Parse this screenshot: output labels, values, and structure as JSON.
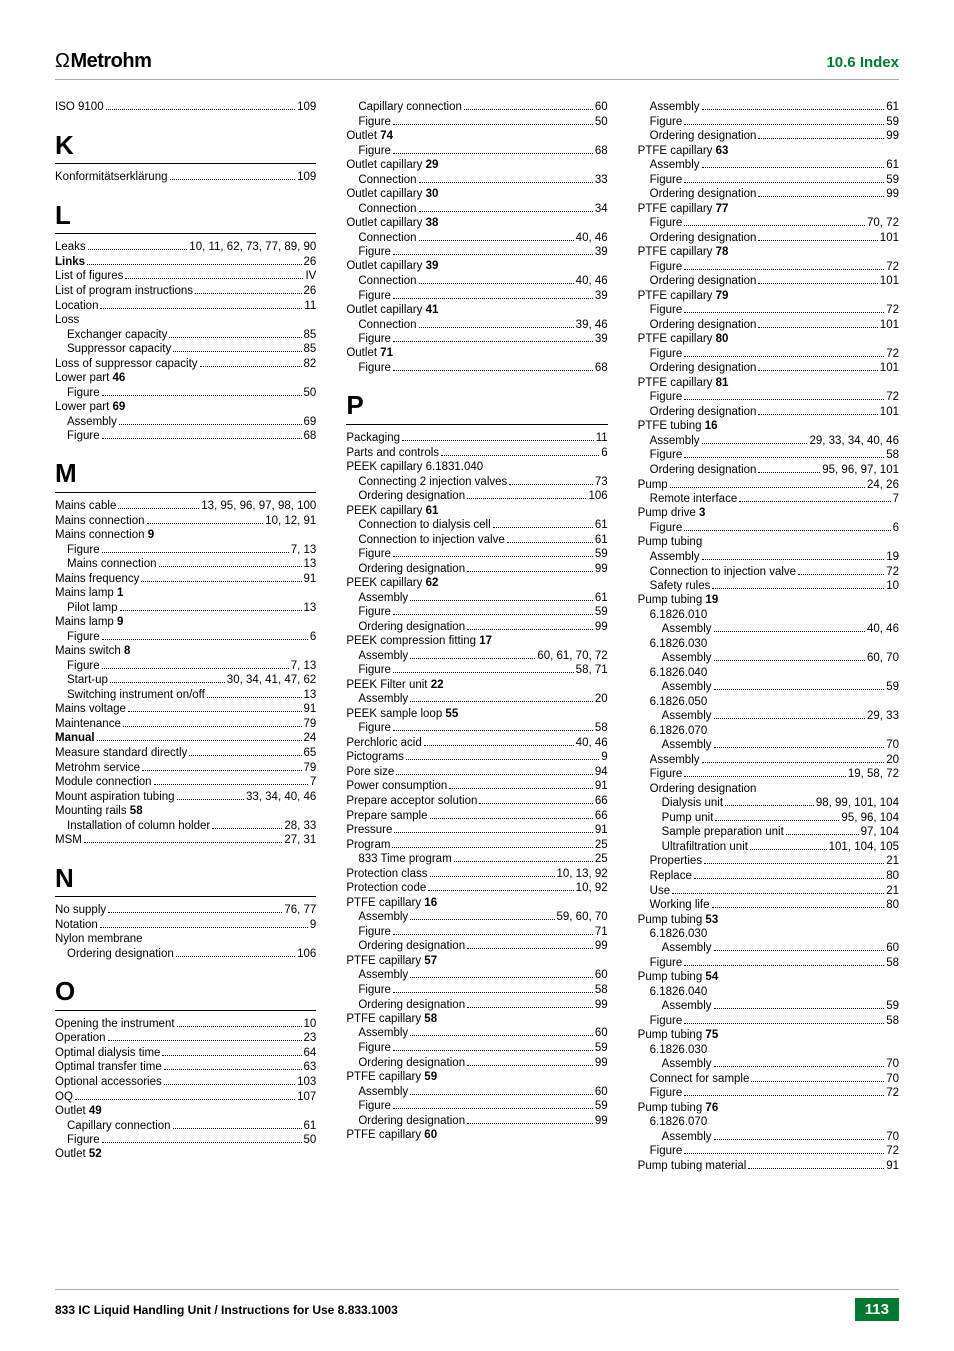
{
  "header": {
    "logo": "Metrohm",
    "section": "10.6  Index"
  },
  "footer": {
    "left": "833 IC Liquid Handling Unit / Instructions for Use 8.833.1003",
    "page": "113"
  },
  "col1": [
    {
      "t": "entry",
      "label": "ISO 9100",
      "pg": "109"
    },
    {
      "t": "letter",
      "v": "K"
    },
    {
      "t": "entry",
      "label": "Konformitätserklärung",
      "pg": "109"
    },
    {
      "t": "letter",
      "v": "L"
    },
    {
      "t": "entry",
      "label": "Leaks",
      "pg": "10, 11, 62, 73, 77, 89, 90"
    },
    {
      "t": "entry",
      "label": "Links",
      "bold": true,
      "pg": "26"
    },
    {
      "t": "entry",
      "label": "List of figures",
      "pg": "IV"
    },
    {
      "t": "entry",
      "label": "List of program instructions",
      "pg": "26"
    },
    {
      "t": "entry",
      "label": "Location",
      "pg": "11"
    },
    {
      "t": "entry",
      "label": "Loss",
      "noline": true
    },
    {
      "t": "entry",
      "indent": 1,
      "label": "Exchanger capacity",
      "pg": "85"
    },
    {
      "t": "entry",
      "indent": 1,
      "label": "Suppressor capacity",
      "pg": "85"
    },
    {
      "t": "entry",
      "label": "Loss of suppressor capacity",
      "pg": "82"
    },
    {
      "t": "entry",
      "label_html": "Lower part <b>46</b>",
      "noline": true
    },
    {
      "t": "entry",
      "indent": 1,
      "label": "Figure",
      "pg": "50"
    },
    {
      "t": "entry",
      "label_html": "Lower part <b>69</b>",
      "noline": true
    },
    {
      "t": "entry",
      "indent": 1,
      "label": "Assembly",
      "pg": "69"
    },
    {
      "t": "entry",
      "indent": 1,
      "label": "Figure",
      "pg": "68"
    },
    {
      "t": "letter",
      "v": "M"
    },
    {
      "t": "entry",
      "label": "Mains cable",
      "pg": "13, 95, 96, 97, 98, 100"
    },
    {
      "t": "entry",
      "label": "Mains connection",
      "pg": "10, 12, 91"
    },
    {
      "t": "entry",
      "label_html": "Mains connection <b>9</b>",
      "noline": true
    },
    {
      "t": "entry",
      "indent": 1,
      "label": "Figure",
      "pg": "7, 13"
    },
    {
      "t": "entry",
      "indent": 1,
      "label": "Mains connection",
      "pg": "13"
    },
    {
      "t": "entry",
      "label": "Mains frequency",
      "pg": "91"
    },
    {
      "t": "entry",
      "label_html": "Mains lamp <b>1</b>",
      "noline": true
    },
    {
      "t": "entry",
      "indent": 1,
      "label": "Pilot lamp",
      "pg": "13"
    },
    {
      "t": "entry",
      "label_html": "Mains lamp <b>9</b>",
      "noline": true
    },
    {
      "t": "entry",
      "indent": 1,
      "label": "Figure",
      "pg": "6"
    },
    {
      "t": "entry",
      "label_html": "Mains switch <b>8</b>",
      "noline": true
    },
    {
      "t": "entry",
      "indent": 1,
      "label": "Figure",
      "pg": "7, 13"
    },
    {
      "t": "entry",
      "indent": 1,
      "label": "Start-up",
      "pg": "30, 34, 41, 47, 62"
    },
    {
      "t": "entry",
      "indent": 1,
      "label": "Switching instrument on/off",
      "pg": "13"
    },
    {
      "t": "entry",
      "label": "Mains voltage",
      "pg": "91"
    },
    {
      "t": "entry",
      "label": "Maintenance",
      "pg": "79"
    },
    {
      "t": "entry",
      "label": "Manual",
      "bold": true,
      "pg": "24"
    },
    {
      "t": "entry",
      "label": "Measure standard directly",
      "pg": "65"
    },
    {
      "t": "entry",
      "label": "Metrohm service",
      "pg": "79"
    },
    {
      "t": "entry",
      "label": "Module connection",
      "pg": "7"
    },
    {
      "t": "entry",
      "label": "Mount aspiration tubing",
      "pg": "33, 34, 40, 46"
    },
    {
      "t": "entry",
      "label_html": "Mounting rails <b>58</b>",
      "noline": true
    },
    {
      "t": "entry",
      "indent": 1,
      "label": "Installation of column holder",
      "pg": "28, 33"
    },
    {
      "t": "entry",
      "label": "MSM",
      "pg": "27, 31"
    },
    {
      "t": "letter",
      "v": "N"
    },
    {
      "t": "entry",
      "label": "No supply",
      "pg": "76, 77"
    },
    {
      "t": "entry",
      "label": "Notation",
      "pg": "9"
    },
    {
      "t": "entry",
      "label": "Nylon membrane",
      "noline": true
    },
    {
      "t": "entry",
      "indent": 1,
      "label": "Ordering designation",
      "pg": "106"
    },
    {
      "t": "letter",
      "v": "O"
    },
    {
      "t": "entry",
      "label": "Opening the instrument",
      "pg": "10"
    },
    {
      "t": "entry",
      "label": "Operation",
      "pg": "23"
    },
    {
      "t": "entry",
      "label": "Optimal dialysis time",
      "pg": "64"
    },
    {
      "t": "entry",
      "label": "Optimal transfer time",
      "pg": "63"
    },
    {
      "t": "entry",
      "label": "Optional accessories",
      "pg": "103"
    },
    {
      "t": "entry",
      "label": "OQ",
      "pg": "107"
    },
    {
      "t": "entry",
      "label_html": "Outlet <b>49</b>",
      "noline": true
    },
    {
      "t": "entry",
      "indent": 1,
      "label": "Capillary connection",
      "pg": "61"
    },
    {
      "t": "entry",
      "indent": 1,
      "label": "Figure",
      "pg": "50"
    },
    {
      "t": "entry",
      "label_html": "Outlet <b>52</b>",
      "noline": true
    }
  ],
  "col2": [
    {
      "t": "entry",
      "indent": 1,
      "label": "Capillary connection",
      "pg": "60"
    },
    {
      "t": "entry",
      "indent": 1,
      "label": "Figure",
      "pg": "50"
    },
    {
      "t": "entry",
      "label_html": "Outlet <b>74</b>",
      "noline": true
    },
    {
      "t": "entry",
      "indent": 1,
      "label": "Figure",
      "pg": "68"
    },
    {
      "t": "entry",
      "label_html": "Outlet capillary <b>29</b>",
      "noline": true
    },
    {
      "t": "entry",
      "indent": 1,
      "label": "Connection",
      "pg": "33"
    },
    {
      "t": "entry",
      "label_html": "Outlet capillary <b>30</b>",
      "noline": true
    },
    {
      "t": "entry",
      "indent": 1,
      "label": "Connection",
      "pg": "34"
    },
    {
      "t": "entry",
      "label_html": "Outlet capillary <b>38</b>",
      "noline": true
    },
    {
      "t": "entry",
      "indent": 1,
      "label": "Connection",
      "pg": "40, 46"
    },
    {
      "t": "entry",
      "indent": 1,
      "label": "Figure",
      "pg": "39"
    },
    {
      "t": "entry",
      "label_html": "Outlet capillary <b>39</b>",
      "noline": true
    },
    {
      "t": "entry",
      "indent": 1,
      "label": "Connection",
      "pg": "40, 46"
    },
    {
      "t": "entry",
      "indent": 1,
      "label": "Figure",
      "pg": "39"
    },
    {
      "t": "entry",
      "label_html": "Outlet capillary <b>41</b>",
      "noline": true
    },
    {
      "t": "entry",
      "indent": 1,
      "label": "Connection",
      "pg": "39, 46"
    },
    {
      "t": "entry",
      "indent": 1,
      "label": "Figure",
      "pg": "39"
    },
    {
      "t": "entry",
      "label_html": "Outlet <b>71</b>",
      "noline": true
    },
    {
      "t": "entry",
      "indent": 1,
      "label": "Figure",
      "pg": "68"
    },
    {
      "t": "letter",
      "v": "P"
    },
    {
      "t": "entry",
      "label": "Packaging",
      "pg": "11"
    },
    {
      "t": "entry",
      "label": "Parts and controls",
      "pg": "6"
    },
    {
      "t": "entry",
      "label": "PEEK capillary 6.1831.040",
      "noline": true
    },
    {
      "t": "entry",
      "indent": 1,
      "label": "Connecting 2 injection valves",
      "pg": "73"
    },
    {
      "t": "entry",
      "indent": 1,
      "label": "Ordering designation",
      "pg": "106"
    },
    {
      "t": "entry",
      "label_html": "PEEK capillary <b>61</b>",
      "noline": true
    },
    {
      "t": "entry",
      "indent": 1,
      "label": "Connection to dialysis cell",
      "pg": "61"
    },
    {
      "t": "entry",
      "indent": 1,
      "label": "Connection to injection valve",
      "pg": "61"
    },
    {
      "t": "entry",
      "indent": 1,
      "label": "Figure",
      "pg": "59"
    },
    {
      "t": "entry",
      "indent": 1,
      "label": "Ordering designation",
      "pg": "99"
    },
    {
      "t": "entry",
      "label_html": "PEEK capillary <b>62</b>",
      "noline": true
    },
    {
      "t": "entry",
      "indent": 1,
      "label": "Assembly",
      "pg": "61"
    },
    {
      "t": "entry",
      "indent": 1,
      "label": "Figure",
      "pg": "59"
    },
    {
      "t": "entry",
      "indent": 1,
      "label": "Ordering designation",
      "pg": "99"
    },
    {
      "t": "entry",
      "label_html": "PEEK compression fitting <b>17</b>",
      "noline": true
    },
    {
      "t": "entry",
      "indent": 1,
      "label": "Assembly",
      "pg": "60, 61, 70, 72"
    },
    {
      "t": "entry",
      "indent": 1,
      "label": "Figure",
      "pg": "58, 71"
    },
    {
      "t": "entry",
      "label_html": "PEEK Filter unit <b>22</b>",
      "noline": true
    },
    {
      "t": "entry",
      "indent": 1,
      "label": "Assembly",
      "pg": "20"
    },
    {
      "t": "entry",
      "label_html": "PEEK sample loop <b>55</b>",
      "noline": true
    },
    {
      "t": "entry",
      "indent": 1,
      "label": "Figure",
      "pg": "58"
    },
    {
      "t": "entry",
      "label": "Perchloric acid",
      "pg": "40, 46"
    },
    {
      "t": "entry",
      "label": "Pictograms",
      "pg": "9"
    },
    {
      "t": "entry",
      "label": "Pore size",
      "pg": "94"
    },
    {
      "t": "entry",
      "label": "Power consumption",
      "pg": "91"
    },
    {
      "t": "entry",
      "label": "Prepare acceptor solution",
      "pg": "66"
    },
    {
      "t": "entry",
      "label": "Prepare sample",
      "pg": "66"
    },
    {
      "t": "entry",
      "label": "Pressure",
      "pg": "91"
    },
    {
      "t": "entry",
      "label": "Program",
      "pg": "25"
    },
    {
      "t": "entry",
      "indent": 1,
      "label": "833 Time program",
      "pg": "25"
    },
    {
      "t": "entry",
      "label": "Protection class",
      "pg": "10, 13, 92"
    },
    {
      "t": "entry",
      "label": "Protection code",
      "pg": "10, 92"
    },
    {
      "t": "entry",
      "label_html": "PTFE capillary <b>16</b>",
      "noline": true
    },
    {
      "t": "entry",
      "indent": 1,
      "label": "Assembly",
      "pg": "59, 60, 70"
    },
    {
      "t": "entry",
      "indent": 1,
      "label": "Figure",
      "pg": "71"
    },
    {
      "t": "entry",
      "indent": 1,
      "label": "Ordering designation",
      "pg": "99"
    },
    {
      "t": "entry",
      "label_html": "PTFE capillary <b>57</b>",
      "noline": true
    },
    {
      "t": "entry",
      "indent": 1,
      "label": "Assembly",
      "pg": "60"
    },
    {
      "t": "entry",
      "indent": 1,
      "label": "Figure",
      "pg": "58"
    },
    {
      "t": "entry",
      "indent": 1,
      "label": "Ordering designation",
      "pg": "99"
    },
    {
      "t": "entry",
      "label_html": "PTFE capillary <b>58</b>",
      "noline": true
    },
    {
      "t": "entry",
      "indent": 1,
      "label": "Assembly",
      "pg": "60"
    },
    {
      "t": "entry",
      "indent": 1,
      "label": "Figure",
      "pg": "59"
    },
    {
      "t": "entry",
      "indent": 1,
      "label": "Ordering designation",
      "pg": "99"
    },
    {
      "t": "entry",
      "label_html": "PTFE capillary <b>59</b>",
      "noline": true
    },
    {
      "t": "entry",
      "indent": 1,
      "label": "Assembly",
      "pg": "60"
    },
    {
      "t": "entry",
      "indent": 1,
      "label": "Figure",
      "pg": "59"
    },
    {
      "t": "entry",
      "indent": 1,
      "label": "Ordering designation",
      "pg": "99"
    },
    {
      "t": "entry",
      "label_html": "PTFE capillary <b>60</b>",
      "noline": true
    }
  ],
  "col3": [
    {
      "t": "entry",
      "indent": 1,
      "label": "Assembly",
      "pg": "61"
    },
    {
      "t": "entry",
      "indent": 1,
      "label": "Figure",
      "pg": "59"
    },
    {
      "t": "entry",
      "indent": 1,
      "label": "Ordering designation",
      "pg": "99"
    },
    {
      "t": "entry",
      "label_html": "PTFE capillary <b>63</b>",
      "noline": true
    },
    {
      "t": "entry",
      "indent": 1,
      "label": "Assembly",
      "pg": "61"
    },
    {
      "t": "entry",
      "indent": 1,
      "label": "Figure",
      "pg": "59"
    },
    {
      "t": "entry",
      "indent": 1,
      "label": "Ordering designation",
      "pg": "99"
    },
    {
      "t": "entry",
      "label_html": "PTFE capillary <b>77</b>",
      "noline": true
    },
    {
      "t": "entry",
      "indent": 1,
      "label": "Figure",
      "pg": "70, 72"
    },
    {
      "t": "entry",
      "indent": 1,
      "label": "Ordering designation",
      "pg": "101"
    },
    {
      "t": "entry",
      "label_html": "PTFE capillary <b>78</b>",
      "noline": true
    },
    {
      "t": "entry",
      "indent": 1,
      "label": "Figure",
      "pg": "72"
    },
    {
      "t": "entry",
      "indent": 1,
      "label": "Ordering designation",
      "pg": "101"
    },
    {
      "t": "entry",
      "label_html": "PTFE capillary <b>79</b>",
      "noline": true
    },
    {
      "t": "entry",
      "indent": 1,
      "label": "Figure",
      "pg": "72"
    },
    {
      "t": "entry",
      "indent": 1,
      "label": "Ordering designation",
      "pg": "101"
    },
    {
      "t": "entry",
      "label_html": "PTFE capillary <b>80</b>",
      "noline": true
    },
    {
      "t": "entry",
      "indent": 1,
      "label": "Figure",
      "pg": "72"
    },
    {
      "t": "entry",
      "indent": 1,
      "label": "Ordering designation",
      "pg": "101"
    },
    {
      "t": "entry",
      "label_html": "PTFE capillary <b>81</b>",
      "noline": true
    },
    {
      "t": "entry",
      "indent": 1,
      "label": "Figure",
      "pg": "72"
    },
    {
      "t": "entry",
      "indent": 1,
      "label": "Ordering designation",
      "pg": "101"
    },
    {
      "t": "entry",
      "label_html": "PTFE tubing <b>16</b>",
      "noline": true
    },
    {
      "t": "entry",
      "indent": 1,
      "label": "Assembly",
      "pg": "29, 33, 34, 40, 46"
    },
    {
      "t": "entry",
      "indent": 1,
      "label": "Figure",
      "pg": "58"
    },
    {
      "t": "entry",
      "indent": 1,
      "label": "Ordering designation",
      "pg": "95, 96, 97, 101"
    },
    {
      "t": "entry",
      "label": "Pump",
      "pg": "24, 26"
    },
    {
      "t": "entry",
      "indent": 1,
      "label": "Remote interface",
      "pg": "7"
    },
    {
      "t": "entry",
      "label_html": "Pump drive <b>3</b>",
      "noline": true
    },
    {
      "t": "entry",
      "indent": 1,
      "label": "Figure",
      "pg": "6"
    },
    {
      "t": "entry",
      "label": "Pump tubing",
      "noline": true
    },
    {
      "t": "entry",
      "indent": 1,
      "label": "Assembly",
      "pg": "19"
    },
    {
      "t": "entry",
      "indent": 1,
      "label": "Connection to injection valve",
      "pg": "72"
    },
    {
      "t": "entry",
      "indent": 1,
      "label": "Safety rules",
      "pg": "10"
    },
    {
      "t": "entry",
      "label_html": "Pump tubing <b>19</b>",
      "noline": true
    },
    {
      "t": "entry",
      "indent": 1,
      "label": "6.1826.010",
      "noline": true
    },
    {
      "t": "entry",
      "indent": 2,
      "label": "Assembly",
      "pg": "40, 46"
    },
    {
      "t": "entry",
      "indent": 1,
      "label": "6.1826.030",
      "noline": true
    },
    {
      "t": "entry",
      "indent": 2,
      "label": "Assembly",
      "pg": "60, 70"
    },
    {
      "t": "entry",
      "indent": 1,
      "label": "6.1826.040",
      "noline": true
    },
    {
      "t": "entry",
      "indent": 2,
      "label": "Assembly",
      "pg": "59"
    },
    {
      "t": "entry",
      "indent": 1,
      "label": "6.1826.050",
      "noline": true
    },
    {
      "t": "entry",
      "indent": 2,
      "label": "Assembly",
      "pg": "29, 33"
    },
    {
      "t": "entry",
      "indent": 1,
      "label": "6.1826.070",
      "noline": true
    },
    {
      "t": "entry",
      "indent": 2,
      "label": "Assembly",
      "pg": "70"
    },
    {
      "t": "entry",
      "indent": 1,
      "label": "Assembly",
      "pg": "20"
    },
    {
      "t": "entry",
      "indent": 1,
      "label": "Figure",
      "pg": "19, 58, 72"
    },
    {
      "t": "entry",
      "indent": 1,
      "label": "Ordering designation",
      "noline": true
    },
    {
      "t": "entry",
      "indent": 2,
      "label": "Dialysis unit",
      "pg": "98, 99, 101, 104"
    },
    {
      "t": "entry",
      "indent": 2,
      "label": "Pump unit",
      "pg": "95, 96, 104"
    },
    {
      "t": "entry",
      "indent": 2,
      "label": "Sample preparation unit",
      "pg": "97, 104"
    },
    {
      "t": "entry",
      "indent": 2,
      "label": "Ultrafiltration unit",
      "pg": "101, 104, 105"
    },
    {
      "t": "entry",
      "indent": 1,
      "label": "Properties",
      "pg": "21"
    },
    {
      "t": "entry",
      "indent": 1,
      "label": "Replace",
      "pg": "80"
    },
    {
      "t": "entry",
      "indent": 1,
      "label": "Use",
      "pg": "21"
    },
    {
      "t": "entry",
      "indent": 1,
      "label": "Working life",
      "pg": "80"
    },
    {
      "t": "entry",
      "label_html": "Pump tubing <b>53</b>",
      "noline": true
    },
    {
      "t": "entry",
      "indent": 1,
      "label": "6.1826.030",
      "noline": true
    },
    {
      "t": "entry",
      "indent": 2,
      "label": "Assembly",
      "pg": "60"
    },
    {
      "t": "entry",
      "indent": 1,
      "label": "Figure",
      "pg": "58"
    },
    {
      "t": "entry",
      "label_html": "Pump tubing <b>54</b>",
      "noline": true
    },
    {
      "t": "entry",
      "indent": 1,
      "label": "6.1826.040",
      "noline": true
    },
    {
      "t": "entry",
      "indent": 2,
      "label": "Assembly",
      "pg": "59"
    },
    {
      "t": "entry",
      "indent": 1,
      "label": "Figure",
      "pg": "58"
    },
    {
      "t": "entry",
      "label_html": "Pump tubing <b>75</b>",
      "noline": true
    },
    {
      "t": "entry",
      "indent": 1,
      "label": "6.1826.030",
      "noline": true
    },
    {
      "t": "entry",
      "indent": 2,
      "label": "Assembly",
      "pg": "70"
    },
    {
      "t": "entry",
      "indent": 1,
      "label": "Connect for sample",
      "pg": "70"
    },
    {
      "t": "entry",
      "indent": 1,
      "label": "Figure",
      "pg": "72"
    },
    {
      "t": "entry",
      "label_html": "Pump tubing <b>76</b>",
      "noline": true
    },
    {
      "t": "entry",
      "indent": 1,
      "label": "6.1826.070",
      "noline": true
    },
    {
      "t": "entry",
      "indent": 2,
      "label": "Assembly",
      "pg": "70"
    },
    {
      "t": "entry",
      "indent": 1,
      "label": "Figure",
      "pg": "72"
    },
    {
      "t": "entry",
      "label": "Pump tubing material",
      "pg": "91"
    }
  ]
}
